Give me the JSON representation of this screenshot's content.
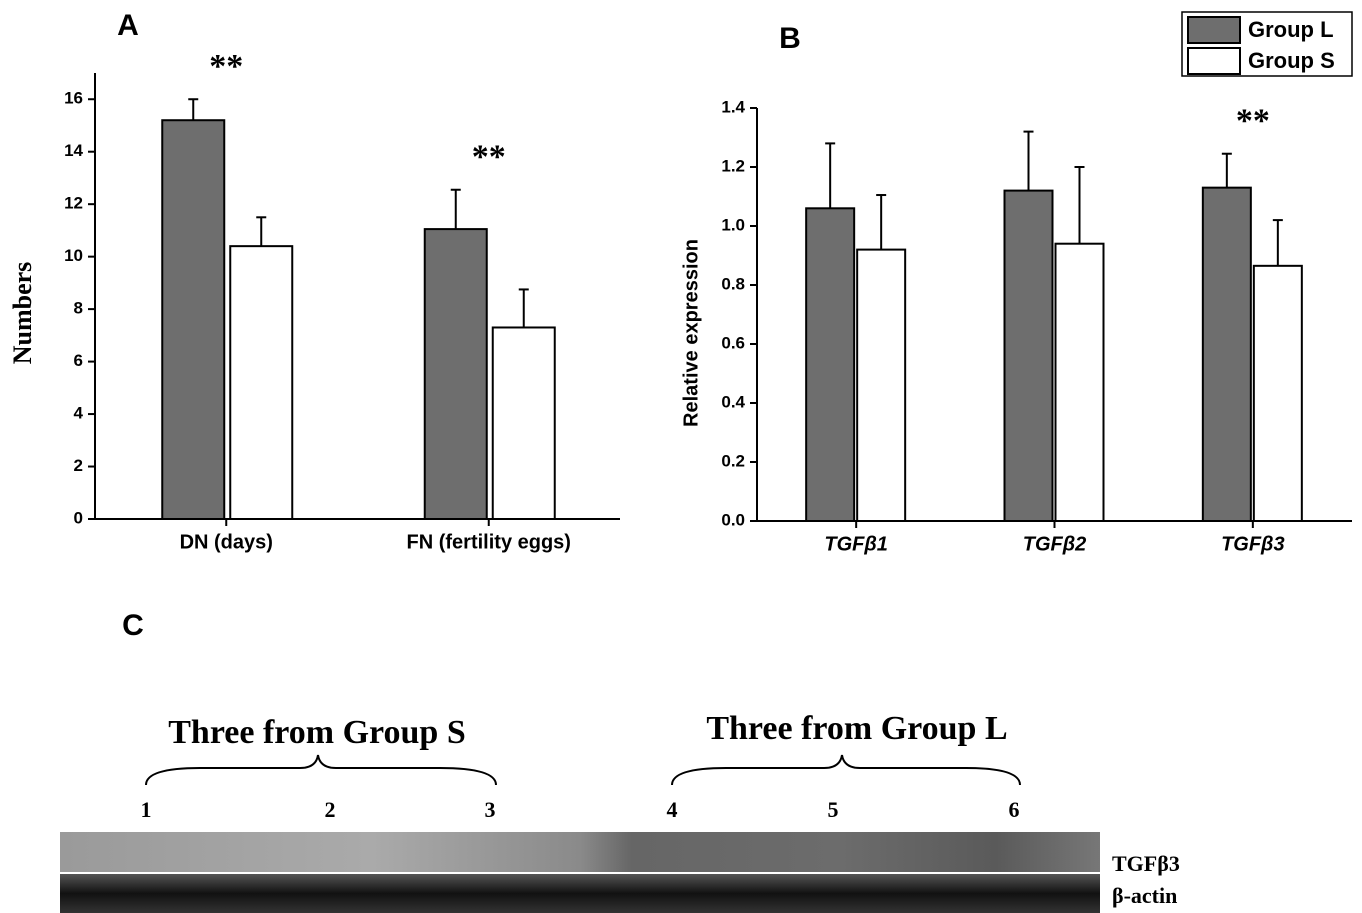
{
  "chart_data": [
    {
      "type": "bar",
      "panel": "A",
      "ylabel": "Numbers",
      "categories": [
        "DN (days)",
        "FN (fertility eggs)"
      ],
      "series": [
        {
          "name": "Group L",
          "color": "#6e6e6e",
          "values": [
            15.2,
            11.05
          ],
          "errors": [
            0.8,
            1.5
          ]
        },
        {
          "name": "Group S",
          "color": "#ffffff",
          "values": [
            10.4,
            7.3
          ],
          "errors": [
            1.1,
            1.45
          ]
        }
      ],
      "annotations": [
        "**",
        "**"
      ],
      "ylim": [
        0,
        17
      ],
      "yticks": [
        0,
        2,
        4,
        6,
        8,
        10,
        12,
        14,
        16
      ],
      "legend": "none"
    },
    {
      "type": "bar",
      "panel": "B",
      "ylabel": "Relative expression",
      "categories": [
        "TGFβ1",
        "TGFβ2",
        "TGFβ3"
      ],
      "series": [
        {
          "name": "Group L",
          "color": "#6e6e6e",
          "values": [
            1.06,
            1.12,
            1.13
          ],
          "errors": [
            0.22,
            0.2,
            0.115
          ]
        },
        {
          "name": "Group S",
          "color": "#ffffff",
          "values": [
            0.92,
            0.94,
            0.865
          ],
          "errors": [
            0.185,
            0.26,
            0.155
          ]
        }
      ],
      "annotations": [
        null,
        null,
        "**"
      ],
      "ylim": [
        0,
        1.4
      ],
      "yticks": [
        {
          "value": 0,
          "label": "0.0"
        },
        0.2,
        0.4,
        0.6,
        0.8,
        {
          "value": 1,
          "label": "1.0"
        },
        1.2,
        1.4
      ],
      "legend": "upper right"
    }
  ],
  "blot": {
    "panel": "C",
    "groups": [
      "Three from Group S",
      "Three from Group L"
    ],
    "lanes": [
      "1",
      "2",
      "3",
      "4",
      "5",
      "6"
    ],
    "bands": [
      "TGFβ3",
      "β-actin"
    ]
  }
}
